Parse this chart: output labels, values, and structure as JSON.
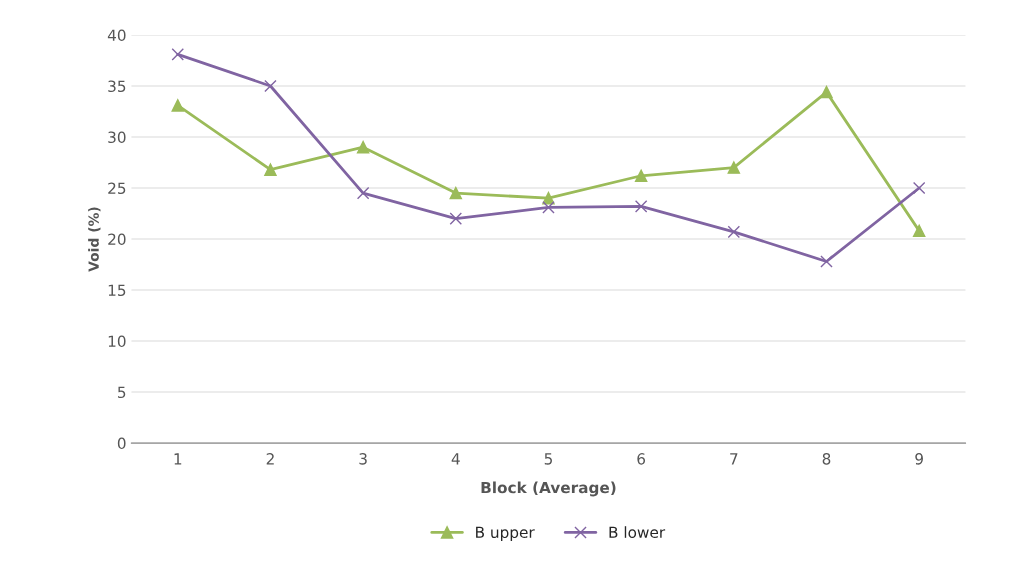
{
  "chart_data": {
    "type": "line",
    "xlabel": "Block (Average)",
    "ylabel": "Void (%)",
    "categories": [
      "1",
      "2",
      "3",
      "4",
      "5",
      "6",
      "7",
      "8",
      "9"
    ],
    "series": [
      {
        "name": "B upper",
        "color": "#9bbb59",
        "marker": "triangle",
        "values": [
          33.1,
          26.8,
          29.0,
          24.5,
          24.0,
          26.2,
          27.0,
          34.4,
          20.8
        ]
      },
      {
        "name": "B lower",
        "color": "#8064a2",
        "marker": "cross",
        "values": [
          38.1,
          35.0,
          24.5,
          22.0,
          23.1,
          23.2,
          20.7,
          17.8,
          25.0
        ]
      }
    ],
    "ylim": [
      0,
      40
    ],
    "yticks": [
      0,
      5,
      10,
      15,
      20,
      25,
      30,
      35,
      40
    ],
    "grid": "y",
    "legend": "bottom"
  }
}
